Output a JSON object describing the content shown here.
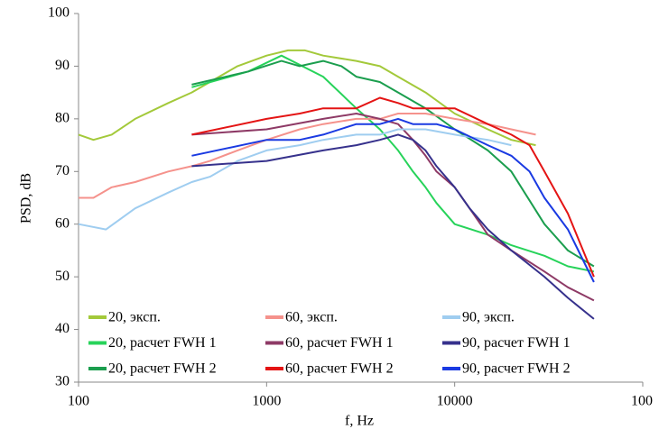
{
  "chart_data": {
    "type": "line",
    "xscale": "log",
    "grid": false,
    "xlabel": "f, Hz",
    "ylabel": "PSD, dB",
    "xlim": [
      100,
      100000
    ],
    "xticks": [
      100,
      1000,
      10000,
      {
        "value": 100000,
        "label": "100"
      }
    ],
    "ylim": [
      30,
      100
    ],
    "yticks": [
      30,
      40,
      50,
      60,
      70,
      80,
      90,
      100
    ],
    "series": [
      {
        "name": "20, эксп.",
        "color": "#a3c93a",
        "x": [
          100,
          120,
          150,
          200,
          300,
          400,
          500,
          700,
          1000,
          1300,
          1600,
          2000,
          3000,
          4000,
          5000,
          7000,
          10000,
          15000,
          20000,
          27000
        ],
        "values": [
          77,
          76,
          77,
          80,
          83,
          85,
          87,
          90,
          92,
          93,
          93,
          92,
          91,
          90,
          88,
          85,
          81,
          78,
          76,
          75
        ]
      },
      {
        "name": "20, расчет FWH 1",
        "color": "#27d35a",
        "x": [
          400,
          800,
          1200,
          2000,
          3000,
          4000,
          5000,
          6000,
          7000,
          8000,
          10000,
          15000,
          20000,
          30000,
          40000,
          55000
        ],
        "values": [
          86,
          89,
          92,
          88,
          82,
          78,
          74,
          70,
          67,
          64,
          60,
          58,
          56,
          54,
          52,
          51
        ]
      },
      {
        "name": "20, расчет FWH 2",
        "color": "#1b9e4e",
        "x": [
          400,
          800,
          1200,
          1500,
          2000,
          2500,
          3000,
          4000,
          5000,
          7000,
          10000,
          15000,
          20000,
          30000,
          40000,
          55000
        ],
        "values": [
          86.5,
          89,
          91,
          90,
          91,
          90,
          88,
          87,
          85,
          82,
          78,
          74,
          70,
          60,
          55,
          52
        ]
      },
      {
        "name": "60, эксп.",
        "color": "#f5928c",
        "x": [
          100,
          120,
          150,
          200,
          300,
          400,
          500,
          700,
          1000,
          1500,
          2000,
          3000,
          4000,
          5000,
          7000,
          10000,
          15000,
          20000,
          27000
        ],
        "values": [
          65,
          65,
          67,
          68,
          70,
          71,
          72,
          74,
          76,
          78,
          79,
          80,
          80,
          81,
          81,
          80,
          79,
          78,
          77
        ]
      },
      {
        "name": "60, расчет FWH 1",
        "color": "#8e3a66",
        "x": [
          400,
          1000,
          2000,
          3000,
          4000,
          5000,
          6000,
          7000,
          8000,
          10000,
          12000,
          15000,
          20000,
          30000,
          40000,
          55000
        ],
        "values": [
          77,
          78,
          80,
          81,
          80,
          79,
          76,
          73,
          70,
          67,
          63,
          58,
          55,
          51,
          48,
          45.5
        ]
      },
      {
        "name": "60, расчет FWH 2",
        "color": "#e41414",
        "x": [
          400,
          1000,
          1500,
          2000,
          3000,
          4000,
          5000,
          6000,
          8000,
          10000,
          15000,
          20000,
          25000,
          30000,
          40000,
          55000
        ],
        "values": [
          77,
          80,
          81,
          82,
          82,
          84,
          83,
          82,
          82,
          82,
          79,
          77,
          75,
          70,
          62,
          50
        ]
      },
      {
        "name": "90, эксп.",
        "color": "#9fcdf0",
        "x": [
          100,
          140,
          200,
          300,
          400,
          500,
          700,
          1000,
          1500,
          2000,
          3000,
          4000,
          5000,
          7000,
          10000,
          15000,
          20000
        ],
        "values": [
          60,
          59,
          63,
          66,
          68,
          69,
          72,
          74,
          75,
          76,
          77,
          77,
          78,
          78,
          77,
          76,
          75
        ]
      },
      {
        "name": "90, расчет FWH 1",
        "color": "#36318c",
        "x": [
          400,
          1000,
          2000,
          3000,
          4000,
          5000,
          6000,
          7000,
          8000,
          10000,
          12000,
          15000,
          20000,
          30000,
          40000,
          55000
        ],
        "values": [
          71,
          72,
          74,
          75,
          76,
          77,
          76,
          74,
          71,
          67,
          63,
          59,
          55,
          50,
          46,
          42
        ]
      },
      {
        "name": "90, расчет FWH 2",
        "color": "#1a3ae2",
        "x": [
          400,
          1000,
          1500,
          2000,
          3000,
          4000,
          5000,
          6000,
          8000,
          10000,
          15000,
          20000,
          25000,
          30000,
          40000,
          55000
        ],
        "values": [
          73,
          76,
          76,
          77,
          79,
          79,
          80,
          79,
          79,
          78,
          75,
          73,
          70,
          65,
          59,
          49
        ]
      }
    ]
  }
}
